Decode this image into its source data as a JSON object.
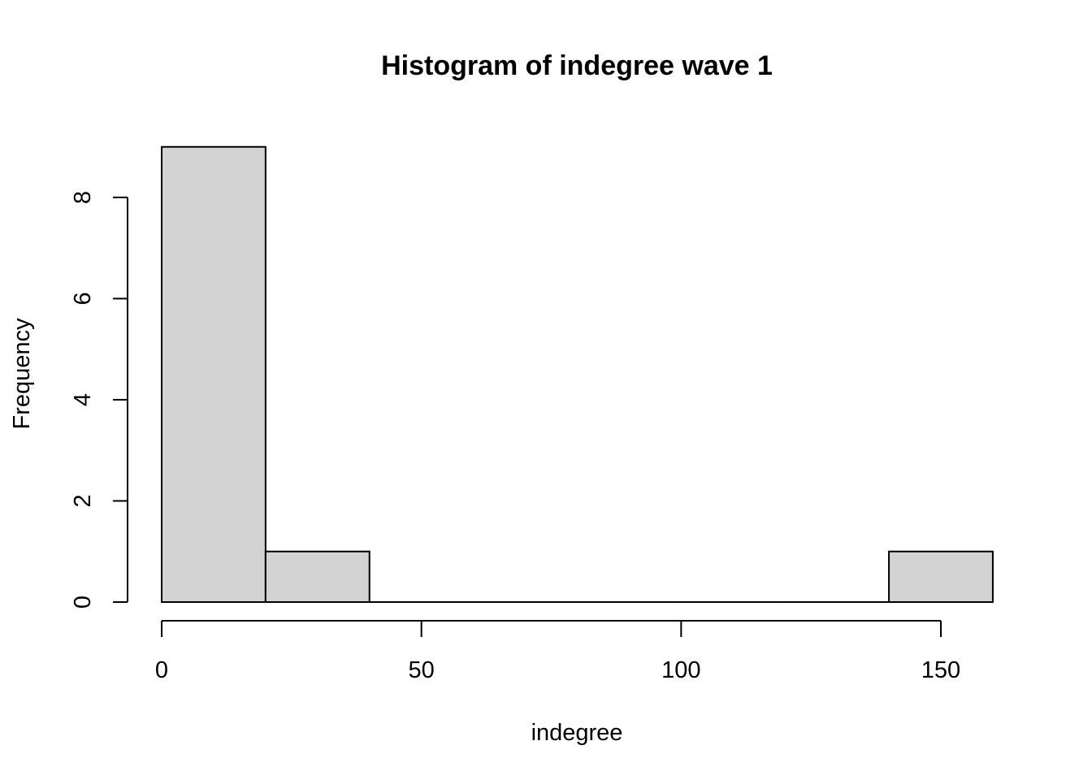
{
  "chart_data": {
    "type": "bar",
    "title": "Histogram of indegree wave 1",
    "xlabel": "indegree",
    "ylabel": "Frequency",
    "bins": [
      {
        "start": 0,
        "end": 20,
        "count": 9
      },
      {
        "start": 20,
        "end": 40,
        "count": 1
      },
      {
        "start": 40,
        "end": 60,
        "count": 0
      },
      {
        "start": 60,
        "end": 80,
        "count": 0
      },
      {
        "start": 80,
        "end": 100,
        "count": 0
      },
      {
        "start": 100,
        "end": 120,
        "count": 0
      },
      {
        "start": 120,
        "end": 140,
        "count": 0
      },
      {
        "start": 140,
        "end": 160,
        "count": 1
      }
    ],
    "xlim": [
      0,
      160
    ],
    "ylim": [
      0,
      9
    ],
    "xticks": [
      0,
      50,
      100,
      150
    ],
    "xtick_labels": [
      "0",
      "50",
      "100",
      "150"
    ],
    "yticks": [
      0,
      2,
      4,
      6,
      8
    ],
    "ytick_labels": [
      "0",
      "2",
      "4",
      "6",
      "8"
    ],
    "bar_fill": "#d3d3d3",
    "bar_stroke": "#000000",
    "grid": false
  }
}
